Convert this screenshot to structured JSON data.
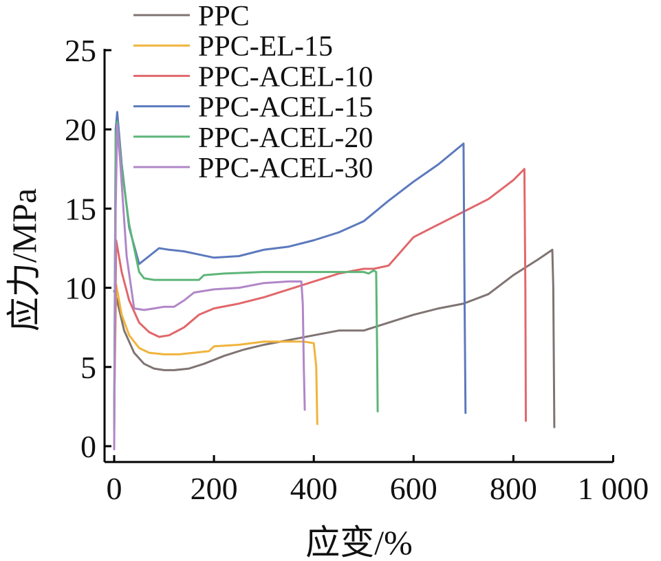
{
  "chart_data": {
    "type": "line",
    "xlabel": "应变/%",
    "ylabel": "应力/MPa",
    "xlim": [
      -10,
      1000
    ],
    "ylim": [
      -1,
      25
    ],
    "xticks": [
      0,
      200,
      400,
      600,
      800,
      1000
    ],
    "xtick_labels": [
      "0",
      "200",
      "400",
      "600",
      "800",
      "1 000"
    ],
    "yticks": [
      0,
      5,
      10,
      15,
      20,
      25
    ],
    "ytick_labels": [
      "0",
      "5",
      "10",
      "15",
      "20",
      "25"
    ],
    "grid": false,
    "legend_position": "top-left",
    "series": [
      {
        "name": "PPC",
        "color": "#7f7472",
        "x": [
          0,
          5,
          20,
          40,
          60,
          80,
          100,
          120,
          150,
          180,
          220,
          260,
          300,
          350,
          400,
          450,
          500,
          540,
          600,
          650,
          700,
          750,
          800,
          850,
          878,
          880,
          882
        ],
        "y": [
          9.8,
          9.3,
          7.3,
          5.9,
          5.2,
          4.9,
          4.8,
          4.8,
          4.9,
          5.2,
          5.7,
          6.1,
          6.4,
          6.7,
          7.0,
          7.3,
          7.3,
          7.7,
          8.3,
          8.7,
          9.0,
          9.6,
          10.8,
          11.8,
          12.4,
          10.0,
          1.2
        ]
      },
      {
        "name": "PPC-EL-15",
        "color": "#f0b43c",
        "x": [
          0,
          4,
          15,
          30,
          50,
          70,
          100,
          130,
          160,
          190,
          200,
          250,
          300,
          350,
          380,
          400,
          405,
          407
        ],
        "y": [
          2.5,
          10.2,
          8.3,
          7.0,
          6.2,
          5.9,
          5.8,
          5.8,
          5.9,
          6.0,
          6.3,
          6.4,
          6.6,
          6.6,
          6.6,
          6.5,
          5.0,
          1.4
        ]
      },
      {
        "name": "PPC-ACEL-10",
        "color": "#e1676a",
        "x": [
          0,
          4,
          15,
          30,
          50,
          70,
          90,
          110,
          140,
          170,
          200,
          250,
          300,
          350,
          400,
          450,
          500,
          520,
          550,
          600,
          650,
          700,
          750,
          800,
          822,
          824,
          825
        ],
        "y": [
          2.0,
          13.0,
          11.0,
          9.2,
          7.8,
          7.2,
          6.9,
          7.0,
          7.5,
          8.3,
          8.7,
          9.0,
          9.4,
          9.9,
          10.4,
          10.9,
          11.2,
          11.2,
          11.4,
          13.2,
          14.0,
          14.8,
          15.6,
          16.8,
          17.5,
          10.0,
          1.6
        ]
      },
      {
        "name": "PPC-ACEL-15",
        "color": "#5b79bd",
        "x": [
          0,
          3,
          6,
          15,
          30,
          50,
          70,
          90,
          110,
          140,
          170,
          200,
          250,
          300,
          350,
          400,
          450,
          500,
          550,
          600,
          650,
          700,
          702,
          704
        ],
        "y": [
          1.0,
          20.0,
          21.1,
          17.8,
          13.8,
          11.5,
          12.0,
          12.5,
          12.4,
          12.3,
          12.1,
          11.9,
          12.0,
          12.4,
          12.6,
          13.0,
          13.5,
          14.2,
          15.5,
          16.7,
          17.8,
          19.1,
          10.0,
          2.1
        ]
      },
      {
        "name": "PPC-ACEL-20",
        "color": "#5db578",
        "x": [
          0,
          3,
          6,
          15,
          30,
          50,
          60,
          80,
          120,
          170,
          180,
          220,
          300,
          400,
          450,
          500,
          510,
          520,
          525,
          527,
          528
        ],
        "y": [
          1.0,
          19.5,
          20.5,
          17.5,
          14.0,
          11.0,
          10.6,
          10.5,
          10.5,
          10.5,
          10.8,
          10.9,
          11.0,
          11.0,
          11.0,
          11.0,
          10.9,
          11.1,
          11.0,
          6.0,
          2.2
        ]
      },
      {
        "name": "PPC-ACEL-30",
        "color": "#b186c8",
        "x": [
          0,
          3,
          6,
          12,
          25,
          40,
          60,
          80,
          100,
          120,
          140,
          160,
          200,
          250,
          300,
          350,
          375,
          378,
          380,
          382
        ],
        "y": [
          -0.2,
          15.0,
          20.3,
          18.0,
          12.0,
          8.7,
          8.6,
          8.7,
          8.8,
          8.8,
          9.2,
          9.7,
          9.9,
          10.0,
          10.3,
          10.4,
          10.4,
          9.0,
          5.0,
          2.3
        ]
      }
    ]
  }
}
